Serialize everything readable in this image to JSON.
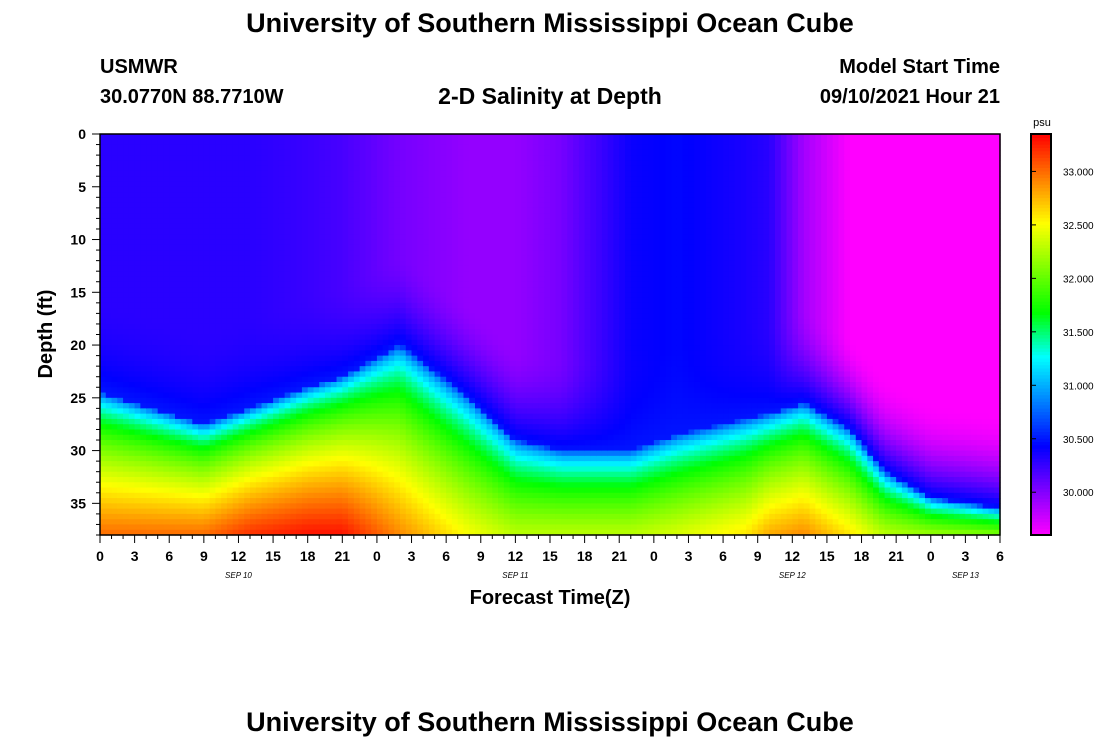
{
  "header": {
    "title": "University of Southern Mississippi Ocean Cube",
    "station": "USMWR",
    "coordinates": "30.0770N  88.7710W",
    "subtitle": "2-D Salinity at Depth",
    "model_start_label": "Model Start Time",
    "model_start_value": "09/10/2021 Hour 21"
  },
  "footer": {
    "title": "University of Southern Mississippi Ocean Cube"
  },
  "chart_data": {
    "type": "heatmap",
    "title": "2-D Salinity at Depth",
    "xlabel": "Forecast Time(Z)",
    "ylabel": "Depth (ft)",
    "x_unit": "hours since SEP 10 00Z",
    "xlim": [
      0,
      78
    ],
    "ylim": [
      0,
      38
    ],
    "y_inverted": true,
    "x_ticks": [
      {
        "h": 0,
        "label": "0"
      },
      {
        "h": 3,
        "label": "3"
      },
      {
        "h": 6,
        "label": "6"
      },
      {
        "h": 9,
        "label": "9"
      },
      {
        "h": 12,
        "label": "12"
      },
      {
        "h": 15,
        "label": "15"
      },
      {
        "h": 18,
        "label": "18"
      },
      {
        "h": 21,
        "label": "21"
      },
      {
        "h": 24,
        "label": "0"
      },
      {
        "h": 27,
        "label": "3"
      },
      {
        "h": 30,
        "label": "6"
      },
      {
        "h": 33,
        "label": "9"
      },
      {
        "h": 36,
        "label": "12"
      },
      {
        "h": 39,
        "label": "15"
      },
      {
        "h": 42,
        "label": "18"
      },
      {
        "h": 45,
        "label": "21"
      },
      {
        "h": 48,
        "label": "0"
      },
      {
        "h": 51,
        "label": "3"
      },
      {
        "h": 54,
        "label": "6"
      },
      {
        "h": 57,
        "label": "9"
      },
      {
        "h": 60,
        "label": "12"
      },
      {
        "h": 63,
        "label": "15"
      },
      {
        "h": 66,
        "label": "18"
      },
      {
        "h": 69,
        "label": "21"
      },
      {
        "h": 72,
        "label": "0"
      },
      {
        "h": 75,
        "label": "3"
      },
      {
        "h": 78,
        "label": "6"
      }
    ],
    "date_labels": [
      {
        "h": 12,
        "label": "SEP 10"
      },
      {
        "h": 36,
        "label": "SEP 11"
      },
      {
        "h": 60,
        "label": "SEP 12"
      },
      {
        "h": 75,
        "label": "SEP 13"
      }
    ],
    "y_ticks": [
      0,
      5,
      10,
      15,
      20,
      25,
      30,
      35
    ],
    "colorbar": {
      "unit": "psu",
      "min": 29.6,
      "max": 33.35,
      "ticks": [
        "33.000",
        "32.500",
        "32.000",
        "31.500",
        "31.000",
        "30.500",
        "30.000"
      ],
      "palette": [
        "#ff00ff",
        "#8000ff",
        "#0000ff",
        "#0080ff",
        "#00ffff",
        "#00ff00",
        "#80ff00",
        "#ffff00",
        "#ff8000",
        "#ff0000"
      ]
    },
    "profile_hours": [
      0,
      9,
      13,
      18,
      21,
      26,
      32,
      36,
      40,
      46,
      50,
      56,
      58,
      61,
      65,
      68,
      72,
      78
    ],
    "surface_salinity": [
      30.3,
      30.3,
      30.3,
      30.25,
      30.2,
      30.05,
      29.95,
      29.95,
      30.05,
      30.4,
      30.45,
      30.35,
      30.3,
      29.9,
      29.6,
      29.6,
      29.6,
      29.6
    ],
    "halocline_depth_ft": [
      24.5,
      27.5,
      26.0,
      24.0,
      23.0,
      20.0,
      25.0,
      29.0,
      30.0,
      30.0,
      28.5,
      27.0,
      26.5,
      25.5,
      28.0,
      32.0,
      34.5,
      35.5
    ],
    "bottom_salinity": [
      33.0,
      33.0,
      33.2,
      33.3,
      33.3,
      32.9,
      32.5,
      32.3,
      32.3,
      32.3,
      32.4,
      32.6,
      32.8,
      32.9,
      32.6,
      32.3,
      32.2,
      32.1
    ],
    "lower_boundary_ft": 38
  }
}
